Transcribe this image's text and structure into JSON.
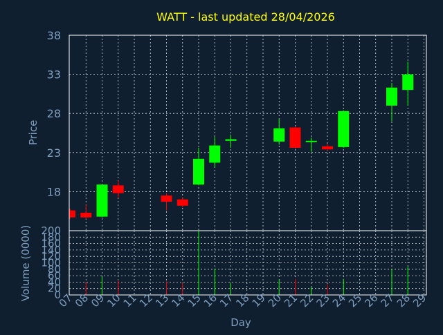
{
  "colors": {
    "background": "#0f1f30",
    "title": "#ffff00",
    "axis_text": "#7f9fbf",
    "grid": "#ffffff",
    "up": "#00ff00",
    "down": "#ff0000",
    "wick": "#aaaaaa"
  },
  "chart_data": [
    {
      "type": "candlestick",
      "title": "WATT - last updated 28/04/2026",
      "ylabel": "Price",
      "ylim": [
        13,
        38
      ],
      "yticks": [
        "18",
        "23",
        "28",
        "33",
        "38"
      ],
      "grid": true,
      "x": [
        "07",
        "08",
        "09",
        "10",
        "11",
        "12",
        "13",
        "14",
        "15",
        "16",
        "17",
        "18",
        "19",
        "20",
        "21",
        "22",
        "23",
        "24",
        "25",
        "26",
        "27",
        "28",
        "29"
      ],
      "candles": [
        {
          "day": "07",
          "open": 15.6,
          "close": 14.7,
          "high": 15.8,
          "low": 14.5
        },
        {
          "day": "08",
          "open": 15.3,
          "close": 14.7,
          "high": 16.3,
          "low": 14.5
        },
        {
          "day": "09",
          "open": 14.8,
          "close": 18.9,
          "high": 19.0,
          "low": 14.7
        },
        {
          "day": "10",
          "open": 18.8,
          "close": 17.8,
          "high": 19.4,
          "low": 17.2
        },
        {
          "day": "13",
          "open": 17.5,
          "close": 16.7,
          "high": 17.8,
          "low": 15.6
        },
        {
          "day": "14",
          "open": 17.0,
          "close": 16.2,
          "high": 17.3,
          "low": 16.0
        },
        {
          "day": "15",
          "open": 18.9,
          "close": 22.2,
          "high": 23.6,
          "low": 18.8
        },
        {
          "day": "16",
          "open": 21.7,
          "close": 23.9,
          "high": 25.0,
          "low": 21.1
        },
        {
          "day": "17",
          "open": 24.5,
          "close": 24.7,
          "high": 25.3,
          "low": 23.6
        },
        {
          "day": "20",
          "open": 24.4,
          "close": 26.1,
          "high": 27.3,
          "low": 24.0
        },
        {
          "day": "21",
          "open": 26.2,
          "close": 23.6,
          "high": 26.3,
          "low": 23.5
        },
        {
          "day": "22",
          "open": 24.4,
          "close": 24.5,
          "high": 24.9,
          "low": 23.1
        },
        {
          "day": "23",
          "open": 23.8,
          "close": 23.4,
          "high": 24.1,
          "low": 23.3
        },
        {
          "day": "24",
          "open": 23.7,
          "close": 28.3,
          "high": 28.4,
          "low": 23.6
        },
        {
          "day": "27",
          "open": 29.0,
          "close": 31.3,
          "high": 31.9,
          "low": 27.0
        },
        {
          "day": "28",
          "open": 31.0,
          "close": 33.0,
          "high": 34.6,
          "low": 29.0
        }
      ]
    },
    {
      "type": "bar",
      "ylabel": "Volume (0000)",
      "xlabel": "Day",
      "ylim": [
        0,
        200
      ],
      "yticks": [
        "0",
        "20",
        "40",
        "60",
        "80",
        "100",
        "120",
        "140",
        "160",
        "180",
        "200"
      ],
      "x": [
        "07",
        "08",
        "09",
        "10",
        "11",
        "12",
        "13",
        "14",
        "15",
        "16",
        "17",
        "18",
        "19",
        "20",
        "21",
        "22",
        "23",
        "24",
        "25",
        "26",
        "27",
        "28",
        "29"
      ],
      "bars": [
        {
          "day": "08",
          "value": 40,
          "dir": "down"
        },
        {
          "day": "09",
          "value": 57,
          "dir": "up"
        },
        {
          "day": "10",
          "value": 44,
          "dir": "down"
        },
        {
          "day": "13",
          "value": 42,
          "dir": "down"
        },
        {
          "day": "14",
          "value": 38,
          "dir": "down"
        },
        {
          "day": "15",
          "value": 200,
          "dir": "up"
        },
        {
          "day": "16",
          "value": 82,
          "dir": "up"
        },
        {
          "day": "17",
          "value": 38,
          "dir": "up"
        },
        {
          "day": "20",
          "value": 47,
          "dir": "up"
        },
        {
          "day": "21",
          "value": 50,
          "dir": "down"
        },
        {
          "day": "22",
          "value": 24,
          "dir": "up"
        },
        {
          "day": "23",
          "value": 33,
          "dir": "down"
        },
        {
          "day": "24",
          "value": 50,
          "dir": "up"
        },
        {
          "day": "27",
          "value": 80,
          "dir": "up"
        },
        {
          "day": "28",
          "value": 88,
          "dir": "up"
        }
      ]
    }
  ]
}
